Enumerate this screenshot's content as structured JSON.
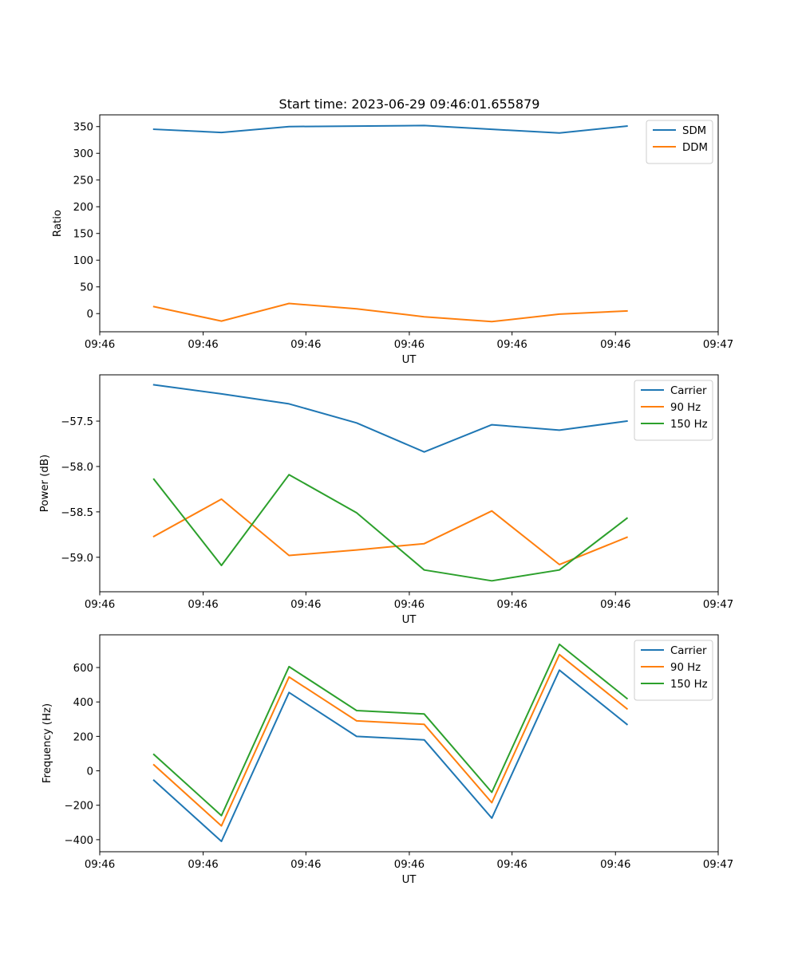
{
  "figure": {
    "title": "Start time: 2023-06-29 09:46:01.655879"
  },
  "chart_data": [
    {
      "type": "line",
      "title": "Start time: 2023-06-29 09:46:01.655879",
      "xlabel": "UT",
      "ylabel": "Ratio",
      "x": [
        1,
        2,
        3,
        4,
        5,
        6,
        7,
        8
      ],
      "xlim": [
        0.2,
        9.35
      ],
      "x_ticks": [
        0.2,
        1.73,
        3.25,
        4.78,
        6.3,
        7.83,
        9.35
      ],
      "x_tick_labels": [
        "09:46",
        "09:46",
        "09:46",
        "09:46",
        "09:46",
        "09:46",
        "09:47"
      ],
      "ylim": [
        -34,
        372
      ],
      "y_ticks": [
        0,
        50,
        100,
        150,
        200,
        250,
        300,
        350
      ],
      "y_tick_labels": [
        "0",
        "50",
        "100",
        "150",
        "200",
        "250",
        "300",
        "350"
      ],
      "legend_position": "upper right",
      "grid": false,
      "series": [
        {
          "name": "SDM",
          "color": "#1f77b4",
          "values": [
            345,
            339,
            350,
            351,
            352,
            345,
            338,
            351
          ]
        },
        {
          "name": "DDM",
          "color": "#ff7f0e",
          "values": [
            13,
            -14,
            19,
            9,
            -6,
            -15,
            -1,
            5
          ]
        }
      ]
    },
    {
      "type": "line",
      "title": "",
      "xlabel": "UT",
      "ylabel": "Power (dB)",
      "x": [
        1,
        2,
        3,
        4,
        5,
        6,
        7,
        8
      ],
      "xlim": [
        0.2,
        9.35
      ],
      "x_ticks": [
        0.2,
        1.73,
        3.25,
        4.78,
        6.3,
        7.83,
        9.35
      ],
      "x_tick_labels": [
        "09:46",
        "09:46",
        "09:46",
        "09:46",
        "09:46",
        "09:46",
        "09:47"
      ],
      "ylim": [
        -59.38,
        -56.99
      ],
      "y_ticks": [
        -59.0,
        -58.5,
        -58.0,
        -57.5
      ],
      "y_tick_labels": [
        "−59.0",
        "−58.5",
        "−58.0",
        "−57.5"
      ],
      "legend_position": "upper right",
      "grid": false,
      "series": [
        {
          "name": "Carrier",
          "color": "#1f77b4",
          "values": [
            -57.1,
            -57.2,
            -57.31,
            -57.52,
            -57.84,
            -57.54,
            -57.6,
            -57.5
          ]
        },
        {
          "name": "90 Hz",
          "color": "#ff7f0e",
          "values": [
            -58.77,
            -58.36,
            -58.98,
            -58.92,
            -58.85,
            -58.49,
            -59.08,
            -58.78
          ]
        },
        {
          "name": "150 Hz",
          "color": "#2ca02c",
          "values": [
            -58.14,
            -59.09,
            -58.09,
            -58.51,
            -59.14,
            -59.26,
            -59.14,
            -58.57
          ]
        }
      ]
    },
    {
      "type": "line",
      "title": "",
      "xlabel": "UT",
      "ylabel": "Frequency (Hz)",
      "x": [
        1,
        2,
        3,
        4,
        5,
        6,
        7,
        8
      ],
      "xlim": [
        0.2,
        9.35
      ],
      "x_ticks": [
        0.2,
        1.73,
        3.25,
        4.78,
        6.3,
        7.83,
        9.35
      ],
      "x_tick_labels": [
        "09:46",
        "09:46",
        "09:46",
        "09:46",
        "09:46",
        "09:46",
        "09:47"
      ],
      "ylim": [
        -470,
        790
      ],
      "y_ticks": [
        -400,
        -200,
        0,
        200,
        400,
        600
      ],
      "y_tick_labels": [
        "−400",
        "−200",
        "0",
        "200",
        "400",
        "600"
      ],
      "legend_position": "upper right",
      "grid": false,
      "series": [
        {
          "name": "Carrier",
          "color": "#1f77b4",
          "values": [
            -55,
            -410,
            455,
            200,
            180,
            -275,
            585,
            270
          ]
        },
        {
          "name": "90 Hz",
          "color": "#ff7f0e",
          "values": [
            35,
            -320,
            545,
            290,
            270,
            -185,
            675,
            360
          ]
        },
        {
          "name": "150 Hz",
          "color": "#2ca02c",
          "values": [
            95,
            -260,
            605,
            350,
            330,
            -125,
            735,
            420
          ]
        }
      ]
    }
  ]
}
